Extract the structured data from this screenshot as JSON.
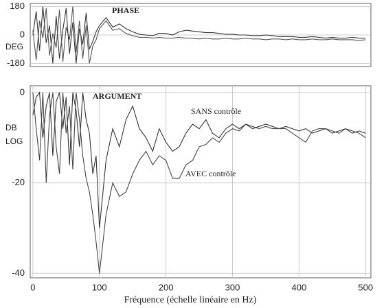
{
  "chart_data": [
    {
      "type": "line",
      "title": "PHASE",
      "ylabel": "DEG",
      "xlim": [
        -4,
        508
      ],
      "ylim": [
        -200,
        200
      ],
      "yticks": [
        180,
        0,
        -180
      ],
      "grid": true,
      "x": [
        0,
        5,
        10,
        15,
        20,
        25,
        30,
        35,
        40,
        45,
        50,
        55,
        60,
        65,
        70,
        75,
        80,
        85,
        90,
        95,
        100,
        110,
        120,
        130,
        140,
        150,
        160,
        170,
        180,
        190,
        200,
        210,
        220,
        230,
        240,
        250,
        260,
        270,
        280,
        290,
        300,
        310,
        320,
        330,
        340,
        350,
        360,
        370,
        380,
        390,
        400,
        410,
        420,
        430,
        440,
        450,
        460,
        470,
        480,
        490,
        500
      ],
      "series": [
        {
          "color": "#333333",
          "values": [
            0,
            150,
            -100,
            180,
            -50,
            60,
            -180,
            120,
            -150,
            30,
            170,
            -120,
            80,
            -180,
            40,
            -60,
            140,
            -90,
            -40,
            20,
            60,
            110,
            50,
            70,
            40,
            20,
            5,
            0,
            -5,
            10,
            10,
            0,
            20,
            30,
            25,
            20,
            15,
            15,
            10,
            5,
            5,
            0,
            0,
            -5,
            -5,
            0,
            -5,
            -10,
            -10,
            -10,
            -15,
            -15,
            -10,
            -15,
            -20,
            -15,
            -20,
            -20,
            -15,
            -20,
            -20
          ]
        },
        {
          "color": "#555555",
          "values": [
            30,
            -160,
            90,
            -20,
            170,
            -130,
            10,
            -80,
            160,
            -170,
            50,
            -30,
            180,
            -110,
            90,
            -150,
            60,
            -180,
            -70,
            -30,
            40,
            90,
            30,
            40,
            10,
            -5,
            -15,
            -15,
            -20,
            -15,
            -20,
            -20,
            -15,
            -20,
            -20,
            -25,
            -20,
            -25,
            -25,
            -20,
            -25,
            -25,
            -20,
            -25,
            -25,
            -30,
            -25,
            -25,
            -30,
            -25,
            -30,
            -30,
            -25,
            -30,
            -30,
            -25,
            -30,
            -30,
            -30,
            -35,
            -30
          ]
        }
      ]
    },
    {
      "type": "line",
      "title": "ARGUMENT",
      "ylabel": "DB LOG",
      "xlabel": "Fréquence (échelle linéaire en Hz)",
      "xlim": [
        -4,
        508
      ],
      "ylim": [
        -41,
        1.5
      ],
      "xticks": [
        0,
        100,
        200,
        300,
        400,
        500
      ],
      "yticks": [
        0,
        -20,
        -40
      ],
      "grid": true,
      "x": [
        0,
        5,
        10,
        15,
        20,
        25,
        30,
        35,
        40,
        45,
        50,
        55,
        60,
        65,
        70,
        75,
        80,
        85,
        90,
        95,
        100,
        110,
        120,
        130,
        140,
        150,
        160,
        170,
        180,
        190,
        200,
        210,
        220,
        230,
        240,
        250,
        260,
        270,
        280,
        290,
        300,
        310,
        320,
        330,
        340,
        350,
        360,
        370,
        380,
        390,
        400,
        410,
        420,
        430,
        440,
        450,
        460,
        470,
        480,
        490,
        500
      ],
      "series": [
        {
          "name": "SANS contrôle",
          "color": "#333333",
          "values": [
            -5,
            -1,
            0,
            -10,
            -3,
            0,
            -14,
            -2,
            0,
            -8,
            -1,
            -16,
            0,
            -4,
            -12,
            0,
            -6,
            -9,
            -18,
            -14,
            -30,
            -15,
            -8,
            -12,
            -6,
            -3,
            -8,
            -10,
            -13,
            -8,
            -11,
            -13,
            -12,
            -9,
            -7,
            -8,
            -6,
            -9,
            -10,
            -8,
            -7,
            -8,
            -7,
            -8,
            -7.5,
            -7,
            -7.5,
            -8,
            -7.5,
            -8,
            -8.5,
            -8,
            -9,
            -8.5,
            -8,
            -9,
            -8.5,
            -8,
            -9,
            -8.5,
            -9
          ]
        },
        {
          "name": "AVEC contrôle",
          "color": "#444444",
          "values": [
            0,
            -8,
            -15,
            0,
            -20,
            -5,
            0,
            -12,
            -18,
            0,
            -9,
            -3,
            -17,
            0,
            -6,
            -14,
            -19,
            -22,
            -27,
            -33,
            -40,
            -27,
            -20,
            -23,
            -22,
            -18,
            -15,
            -13,
            -16,
            -14,
            -15,
            -19,
            -19,
            -16,
            -15,
            -12,
            -11.5,
            -10,
            -11,
            -9,
            -8,
            -8.5,
            -7,
            -7.5,
            -8,
            -7.5,
            -8,
            -8,
            -8,
            -9,
            -10,
            -11,
            -8.5,
            -8,
            -8,
            -8.5,
            -9,
            -8,
            -8.5,
            -9,
            -10
          ]
        }
      ]
    }
  ]
}
